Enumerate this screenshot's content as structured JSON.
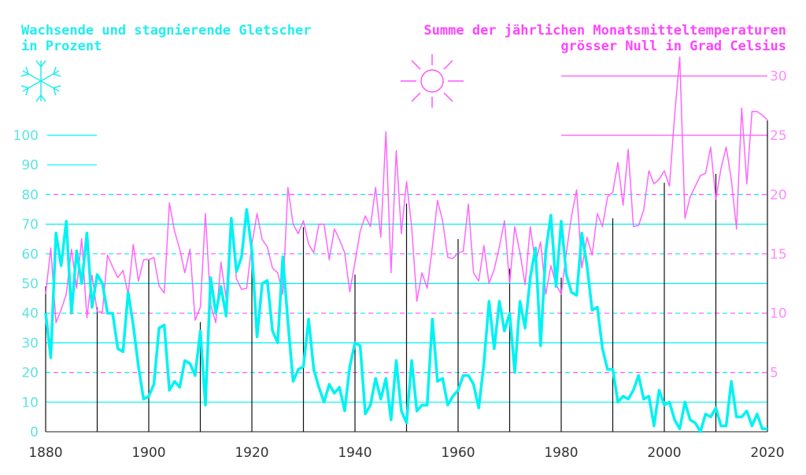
{
  "chart_data": {
    "type": "line",
    "title_left": [
      "Wachsende und stagnierende Gletscher",
      "in Prozent"
    ],
    "title_right": [
      "Summe der jährlichen Monatsmitteltemperaturen",
      "grösser Null in Grad Celsius"
    ],
    "icons": {
      "left": "snowflake-icon",
      "right": "sun-icon"
    },
    "colors": {
      "glacier": "#00f2f2",
      "temperature": "#ff55ff",
      "glacier_label": "#5fe3e3",
      "temperature_label": "#ff8cff",
      "decade_lines": "#000000"
    },
    "xlim": [
      1880,
      2020
    ],
    "ylim_left": [
      0,
      100
    ],
    "ylim_right": [
      0,
      30
    ],
    "x_ticks": [
      "1880",
      "1900",
      "1920",
      "1940",
      "1960",
      "1980",
      "2000",
      "2020"
    ],
    "y_ticks_left": [
      "0",
      "10",
      "20",
      "30",
      "40",
      "50",
      "60",
      "70",
      "80",
      "90",
      "100"
    ],
    "y_ticks_right": [
      "5",
      "10",
      "15",
      "20",
      "25",
      "30"
    ],
    "decade_markers": {
      "years": [
        1880,
        1890,
        1900,
        1910,
        1920,
        1930,
        1940,
        1950,
        1960,
        1970,
        1980,
        1990,
        2000,
        2010,
        2020
      ],
      "values_percent": [
        49,
        42,
        58,
        37,
        60,
        69,
        53,
        77,
        65,
        55,
        52,
        72,
        84,
        87,
        105
      ]
    },
    "series": [
      {
        "name": "Wachsende und stagnierende Gletscher (%)",
        "axis": "left",
        "start_year": 1880,
        "values": [
          40,
          25,
          67,
          56,
          71,
          40,
          61,
          50,
          67,
          42,
          53,
          50,
          40,
          40,
          28,
          27,
          47,
          36,
          22,
          11,
          12,
          16,
          35,
          36,
          14,
          17,
          15,
          24,
          23,
          19,
          34,
          9,
          52,
          40,
          49,
          39,
          72,
          54,
          59,
          75,
          61,
          32,
          50,
          51,
          34,
          30,
          59,
          37,
          17,
          21,
          22,
          38,
          21,
          15,
          10,
          16,
          13,
          15,
          7,
          22,
          30,
          29,
          6,
          9,
          18,
          11,
          18,
          4,
          24,
          7,
          3,
          24,
          7,
          9,
          9,
          38,
          17,
          18,
          9,
          12,
          14,
          19,
          19,
          16,
          8,
          23,
          44,
          28,
          44,
          34,
          40,
          20,
          44,
          35,
          52,
          62,
          29,
          61,
          73,
          49,
          71,
          53,
          47,
          46,
          67,
          56,
          41,
          42,
          28,
          21,
          21,
          10,
          12,
          11,
          14,
          19,
          11,
          12,
          2,
          14,
          9,
          10,
          4,
          1,
          10,
          4,
          3,
          0,
          6,
          5,
          8,
          2,
          2,
          17,
          5,
          5,
          7,
          2,
          6,
          1,
          1
        ]
      },
      {
        "name": "Summe der jährlichen Monatsmitteltemperaturen > 0 (°C)",
        "axis": "right",
        "start_year": 1880,
        "values": [
          11.6,
          15.5,
          9.2,
          10.3,
          11.6,
          15.4,
          12.1,
          16.3,
          9.6,
          13.2,
          10.1,
          10.1,
          14.9,
          13.9,
          13.0,
          13.6,
          11.6,
          15.8,
          12.7,
          14.5,
          14.5,
          14.7,
          12.3,
          11.7,
          19.3,
          16.9,
          15.4,
          13.4,
          15.4,
          9.4,
          10.5,
          18.4,
          10.7,
          9.2,
          14.3,
          11.2,
          17.5,
          12.9,
          12.0,
          12.1,
          15.8,
          18.4,
          16.2,
          15.6,
          13.8,
          13.4,
          11.6,
          20.6,
          17.5,
          16.7,
          17.8,
          15.8,
          15.1,
          17.5,
          17.5,
          14.5,
          17.1,
          16.2,
          15.1,
          11.8,
          14.3,
          16.9,
          18.2,
          17.3,
          20.6,
          16.4,
          25.3,
          13.4,
          23.7,
          16.7,
          21.1,
          17.3,
          11.0,
          13.4,
          12.1,
          15.6,
          19.5,
          17.8,
          14.7,
          14.6,
          15.1,
          15.2,
          19.2,
          13.4,
          12.7,
          15.7,
          12.5,
          13.7,
          15.6,
          17.8,
          12.5,
          17.3,
          15.1,
          12.4,
          17.3,
          14.2,
          16.0,
          11.6,
          14.0,
          12.4,
          11.6,
          15.1,
          18.2,
          20.4,
          13.8,
          16.4,
          14.9,
          18.4,
          17.3,
          19.8,
          20.2,
          22.7,
          19.1,
          23.8,
          17.3,
          17.4,
          18.7,
          22.0,
          20.9,
          21.3,
          22.0,
          20.7,
          26.7,
          31.6,
          18.0,
          19.8,
          20.7,
          21.6,
          21.8,
          24.0,
          19.6,
          22.2,
          24.0,
          21.3,
          17.1,
          27.3,
          20.9,
          27.0,
          27.0,
          26.7,
          26.3
        ]
      }
    ]
  }
}
